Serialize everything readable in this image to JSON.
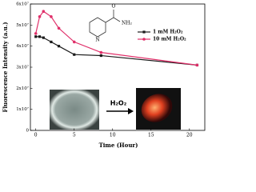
{
  "chart_data": {
    "type": "line",
    "x_label": "Time (Hour)",
    "y_label": "Fluorescence Intensity (a.u.)",
    "xlim": [
      -0.7,
      22
    ],
    "xticks": [
      0,
      5,
      10,
      15,
      20
    ],
    "ylim": [
      0,
      60000000
    ],
    "yticks": [
      0,
      {
        "value": 10000000,
        "label": "1x10⁷"
      },
      {
        "value": 20000000,
        "label": "2x10⁷"
      },
      {
        "value": 30000000,
        "label": "3x10⁷"
      },
      {
        "value": 40000000,
        "label": "4x10⁷"
      },
      {
        "value": 50000000,
        "label": "5x10⁷"
      },
      {
        "value": 60000000,
        "label": "6x10⁷"
      }
    ],
    "legend": "upper right",
    "series": [
      {
        "name": "1 mM H₂O₂",
        "color": "#1a1a1a",
        "x": [
          0,
          0.5,
          1,
          2,
          3,
          5,
          8.5,
          21
        ],
        "values": [
          44500000,
          44500000,
          44000000,
          42000000,
          40000000,
          36000000,
          35500000,
          31000000
        ]
      },
      {
        "name": "10 mM H₂O₂",
        "color": "#e0306a",
        "x": [
          0,
          0.5,
          1,
          2,
          3,
          5,
          8.5,
          21
        ],
        "values": [
          46000000,
          54000000,
          56500000,
          54000000,
          48500000,
          42000000,
          37000000,
          31000000
        ]
      }
    ],
    "annotations": [
      "H₂O₂",
      "O",
      "NH₂",
      "N"
    ]
  }
}
